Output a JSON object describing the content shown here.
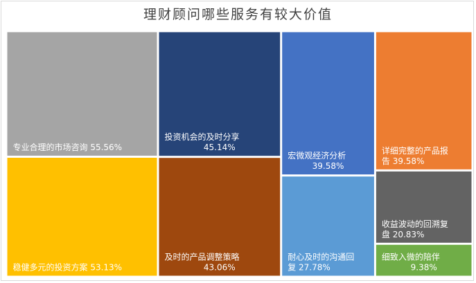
{
  "title": "理财顾问哪些服务有较大价值",
  "chart_data": {
    "type": "treemap",
    "title": "理财顾问哪些服务有较大价值",
    "items": [
      {
        "name": "专业合理的市场咨询",
        "value": 55.56,
        "label_lines": [
          "专业合理的市场咨询 55.56%"
        ],
        "color": "#a5a5a5"
      },
      {
        "name": "稳健多元的投资方案",
        "value": 53.13,
        "label_lines": [
          "稳健多元的投资方案 53.13%"
        ],
        "color": "#ffc000"
      },
      {
        "name": "投资机会的及时分享",
        "value": 45.14,
        "label_lines": [
          "投资机会的及时分享",
          "45.14%"
        ],
        "color": "#264478"
      },
      {
        "name": "及时的产品调整策略",
        "value": 43.06,
        "label_lines": [
          "及时的产品调整策略",
          "43.06%"
        ],
        "color": "#9e480e"
      },
      {
        "name": "宏微观经济分析",
        "value": 39.58,
        "label_lines": [
          "宏微观经济分析",
          "39.58%"
        ],
        "color": "#4472c4"
      },
      {
        "name": "耐心及时的沟通回复",
        "value": 27.78,
        "label_lines": [
          "耐心及时的沟通回",
          "复 27.78%"
        ],
        "color": "#5b9bd5"
      },
      {
        "name": "详细完整的产品报告",
        "value": 39.58,
        "label_lines": [
          "详细完整的产品报",
          "告 39.58%"
        ],
        "color": "#ed7d31"
      },
      {
        "name": "收益波动的回溯复盘",
        "value": 20.83,
        "label_lines": [
          "收益波动的回溯复",
          "盘 20.83%"
        ],
        "color": "#636363"
      },
      {
        "name": "细致入微的陪伴",
        "value": 9.38,
        "label_lines": [
          "细致入微的陪伴",
          "9.38%"
        ],
        "color": "#70ad47"
      }
    ]
  }
}
